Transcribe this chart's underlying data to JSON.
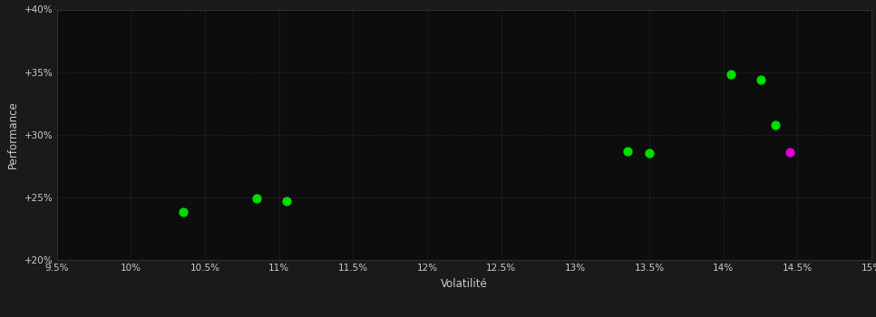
{
  "background_color": "#1a1a1a",
  "plot_bg_color": "#0d0d0d",
  "grid_color": "#3a3a3a",
  "xlabel": "Volatilité",
  "ylabel": "Performance",
  "xlim": [
    0.095,
    0.15
  ],
  "ylim": [
    0.2,
    0.4
  ],
  "xticks": [
    0.095,
    0.1,
    0.105,
    0.11,
    0.115,
    0.12,
    0.125,
    0.13,
    0.135,
    0.14,
    0.145,
    0.15
  ],
  "yticks": [
    0.2,
    0.25,
    0.3,
    0.35,
    0.4
  ],
  "ytick_labels": [
    "+20%",
    "+25%",
    "+30%",
    "+35%",
    "+40%"
  ],
  "xtick_labels": [
    "9.5%",
    "10%",
    "10.5%",
    "11%",
    "11.5%",
    "12%",
    "12.5%",
    "13%",
    "13.5%",
    "14%",
    "14.5%",
    "15%"
  ],
  "green_points": [
    [
      0.1035,
      0.238
    ],
    [
      0.1085,
      0.249
    ],
    [
      0.1105,
      0.247
    ],
    [
      0.1335,
      0.287
    ],
    [
      0.135,
      0.285
    ],
    [
      0.1405,
      0.348
    ],
    [
      0.1425,
      0.344
    ],
    [
      0.1435,
      0.308
    ]
  ],
  "magenta_points": [
    [
      0.1445,
      0.286
    ]
  ],
  "green_color": "#00dd00",
  "magenta_color": "#dd00dd",
  "marker_size": 55,
  "text_color": "#cccccc",
  "tick_fontsize": 7.5,
  "label_fontsize": 8.5
}
